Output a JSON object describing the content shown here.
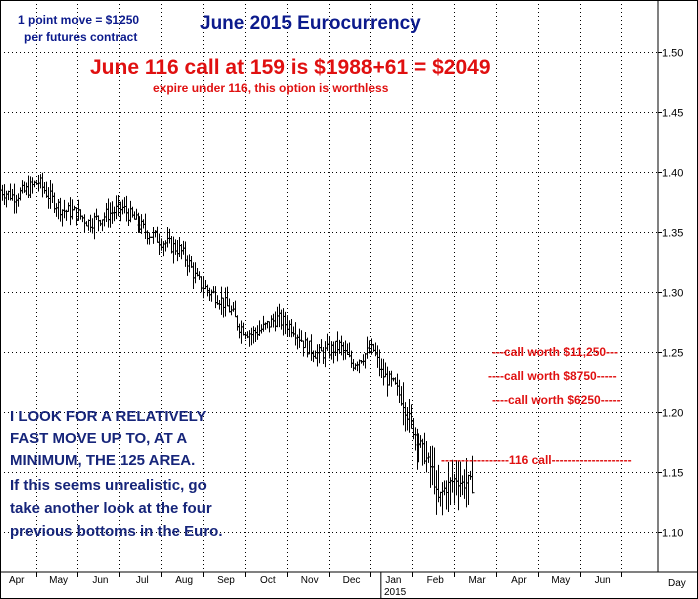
{
  "chart_data": {
    "type": "bar",
    "title": "June 2015 Eurocurrency",
    "subtitle": "June 116 call at 159 is $1988+61 = $2049",
    "note": "expire under 116, this option is worthless",
    "contract_note": [
      "1 point move = $1250",
      "per futures contract"
    ],
    "x_period_label": "Day",
    "year_label": "2015",
    "months": [
      "Apr",
      "May",
      "Jun",
      "Jul",
      "Aug",
      "Sep",
      "Oct",
      "Nov",
      "Dec",
      "Jan",
      "Feb",
      "Mar",
      "Apr",
      "May",
      "Jun"
    ],
    "ylim": [
      1.06,
      1.55
    ],
    "yticks": [
      1.1,
      1.15,
      1.2,
      1.25,
      1.3,
      1.35,
      1.4,
      1.45,
      1.5
    ],
    "grid": true,
    "price_path": [
      {
        "m": 0.0,
        "v": 1.385
      },
      {
        "m": 0.3,
        "v": 1.38
      },
      {
        "m": 0.6,
        "v": 1.384
      },
      {
        "m": 0.9,
        "v": 1.392
      },
      {
        "m": 1.2,
        "v": 1.378
      },
      {
        "m": 1.5,
        "v": 1.368
      },
      {
        "m": 1.8,
        "v": 1.366
      },
      {
        "m": 2.1,
        "v": 1.358
      },
      {
        "m": 2.4,
        "v": 1.362
      },
      {
        "m": 2.7,
        "v": 1.367
      },
      {
        "m": 2.9,
        "v": 1.37
      },
      {
        "m": 3.2,
        "v": 1.36
      },
      {
        "m": 3.5,
        "v": 1.35
      },
      {
        "m": 3.8,
        "v": 1.344
      },
      {
        "m": 4.0,
        "v": 1.34
      },
      {
        "m": 4.3,
        "v": 1.335
      },
      {
        "m": 4.5,
        "v": 1.325
      },
      {
        "m": 4.7,
        "v": 1.31
      },
      {
        "m": 5.0,
        "v": 1.3
      },
      {
        "m": 5.2,
        "v": 1.296
      },
      {
        "m": 5.5,
        "v": 1.285
      },
      {
        "m": 5.7,
        "v": 1.272
      },
      {
        "m": 6.0,
        "v": 1.265
      },
      {
        "m": 6.3,
        "v": 1.27
      },
      {
        "m": 6.6,
        "v": 1.278
      },
      {
        "m": 6.9,
        "v": 1.272
      },
      {
        "m": 7.0,
        "v": 1.27
      },
      {
        "m": 7.3,
        "v": 1.255
      },
      {
        "m": 7.6,
        "v": 1.248
      },
      {
        "m": 7.9,
        "v": 1.252
      },
      {
        "m": 8.1,
        "v": 1.255
      },
      {
        "m": 8.4,
        "v": 1.24
      },
      {
        "m": 8.7,
        "v": 1.248
      },
      {
        "m": 8.9,
        "v": 1.252
      },
      {
        "m": 9.1,
        "v": 1.232
      },
      {
        "m": 9.4,
        "v": 1.222
      },
      {
        "m": 9.6,
        "v": 1.21
      },
      {
        "m": 9.8,
        "v": 1.19
      },
      {
        "m": 10.0,
        "v": 1.175
      },
      {
        "m": 10.2,
        "v": 1.16
      },
      {
        "m": 10.35,
        "v": 1.15
      },
      {
        "m": 10.45,
        "v": 1.125
      },
      {
        "m": 10.6,
        "v": 1.135
      },
      {
        "m": 10.75,
        "v": 1.14
      },
      {
        "m": 10.9,
        "v": 1.145
      },
      {
        "m": 11.05,
        "v": 1.14
      },
      {
        "m": 11.2,
        "v": 1.142
      },
      {
        "m": 11.3,
        "v": 1.138
      }
    ],
    "resistance_lines": [
      {
        "label": "---call worth $11,250---",
        "value": 1.25
      },
      {
        "label": "----call worth $8750-----",
        "value": 1.23
      },
      {
        "label": "----call worth $6250-----",
        "value": 1.21
      },
      {
        "label": "-----------------116 call--------------------",
        "value": 1.16
      }
    ],
    "commentary": [
      "I LOOK FOR A RELATIVELY",
      "FAST MOVE UP TO, AT A",
      "MINIMUM, THE 125 AREA.",
      "If this seems unrealistic, go",
      "take another look at the four",
      "previous bottoms in the Euro."
    ],
    "colors": {
      "title": "#0b1a8c",
      "subtitle": "#e01010",
      "levels": "#e01010",
      "commentary": "#16257a",
      "bars": "#000000",
      "grid": "#000000"
    }
  }
}
